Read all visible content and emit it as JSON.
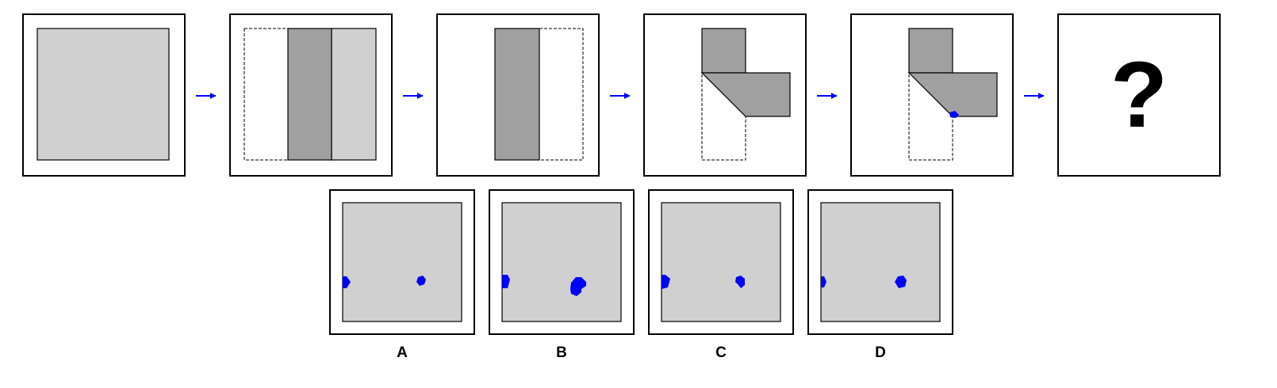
{
  "puzzle": {
    "sequence": [
      {
        "step": 1,
        "state": "unfolded-paper"
      },
      {
        "step": 2,
        "state": "fold-left-third-over"
      },
      {
        "step": 3,
        "state": "fold-right-third-over"
      },
      {
        "step": 4,
        "state": "fold-bottom-diagonally"
      },
      {
        "step": 5,
        "state": "punch-hole"
      },
      {
        "step": 6,
        "state": "unknown",
        "text": "?"
      }
    ],
    "options": [
      {
        "label": "A"
      },
      {
        "label": "B"
      },
      {
        "label": "C"
      },
      {
        "label": "D"
      }
    ]
  },
  "colors": {
    "paper": "#d0d0d0",
    "paper_folded": "#a0a0a0",
    "arrow": "#0000ff",
    "hole": "#0000ff",
    "border": "#000000",
    "background": "#ffffff"
  },
  "icons": {
    "arrow": "right-arrow-icon",
    "hole": "punched-hole-icon"
  }
}
